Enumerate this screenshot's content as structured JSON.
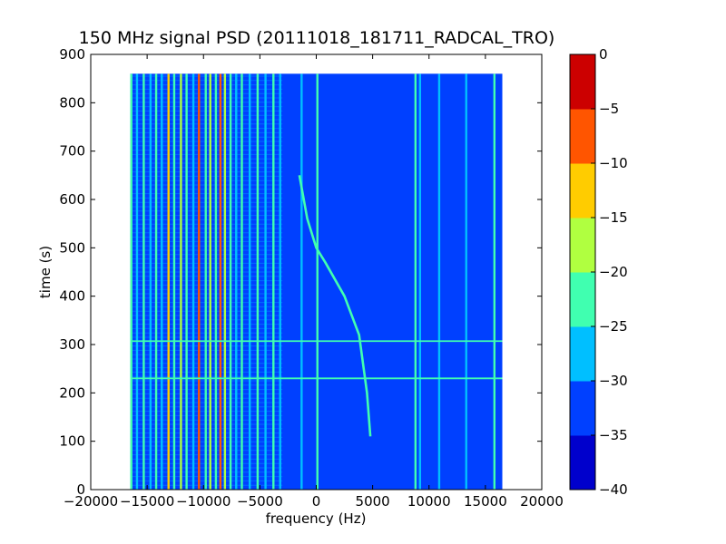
{
  "chart_data": {
    "type": "heatmap",
    "title": "150 MHz signal PSD (20111018_181711_RADCAL_TRO)",
    "xlabel": "frequency (Hz)",
    "ylabel": "time (s)",
    "xlim": [
      -20000,
      20000
    ],
    "ylim": [
      0,
      900
    ],
    "x_ticks": [
      -20000,
      -15000,
      -10000,
      -5000,
      0,
      5000,
      10000,
      15000,
      20000
    ],
    "x_tick_labels": [
      "−20000",
      "−15000",
      "−10000",
      "−5000",
      "0",
      "5000",
      "10000",
      "15000",
      "20000"
    ],
    "y_ticks": [
      0,
      100,
      200,
      300,
      400,
      500,
      600,
      700,
      800,
      900
    ],
    "y_tick_labels": [
      "0",
      "100",
      "200",
      "300",
      "400",
      "500",
      "600",
      "700",
      "800",
      "900"
    ],
    "data_extent": {
      "freq": [
        -16500,
        16500
      ],
      "time": [
        0,
        860
      ]
    },
    "background_level": -33,
    "colorbar": {
      "levels": [
        -40,
        -35,
        -30,
        -25,
        -20,
        -15,
        -10,
        -5,
        0
      ],
      "tick_labels": [
        "−40",
        "−35",
        "−30",
        "−25",
        "−20",
        "−15",
        "−10",
        "−5",
        "0"
      ],
      "colors": [
        "#0000cc",
        "#0040ff",
        "#00bfff",
        "#40ffb0",
        "#b0ff40",
        "#ffcc00",
        "#ff5500",
        "#cc0000"
      ]
    },
    "vertical_lines": [
      {
        "freq": -16400,
        "level": -22
      },
      {
        "freq": -15900,
        "level": -27
      },
      {
        "freq": -15300,
        "level": -22
      },
      {
        "freq": -14700,
        "level": -27
      },
      {
        "freq": -14200,
        "level": -22
      },
      {
        "freq": -13700,
        "level": -27
      },
      {
        "freq": -13100,
        "level": -12
      },
      {
        "freq": -12600,
        "level": -22
      },
      {
        "freq": -12000,
        "level": -17
      },
      {
        "freq": -11500,
        "level": -22
      },
      {
        "freq": -10900,
        "level": -27
      },
      {
        "freq": -10400,
        "level": -7
      },
      {
        "freq": -9800,
        "level": -22
      },
      {
        "freq": -9400,
        "level": -17
      },
      {
        "freq": -8900,
        "level": -22
      },
      {
        "freq": -8500,
        "level": -7
      },
      {
        "freq": -8100,
        "level": -17
      },
      {
        "freq": -7600,
        "level": -22
      },
      {
        "freq": -7100,
        "level": -27
      },
      {
        "freq": -6600,
        "level": -22
      },
      {
        "freq": -5900,
        "level": -27
      },
      {
        "freq": -5200,
        "level": -22
      },
      {
        "freq": -4500,
        "level": -27
      },
      {
        "freq": -3800,
        "level": -22
      },
      {
        "freq": -3200,
        "level": -27
      },
      {
        "freq": -1300,
        "level": -27
      },
      {
        "freq": 100,
        "level": -22
      },
      {
        "freq": 8800,
        "level": -22
      },
      {
        "freq": 9200,
        "level": -27
      },
      {
        "freq": 10900,
        "level": -27
      },
      {
        "freq": 13300,
        "level": -27
      },
      {
        "freq": 15800,
        "level": -22
      }
    ],
    "horizontal_lines": [
      {
        "time": 230,
        "level": -25
      },
      {
        "time": 307,
        "level": -25
      }
    ],
    "drift_trace": {
      "level": -22,
      "points": [
        [
          4800,
          110
        ],
        [
          4500,
          200
        ],
        [
          3800,
          320
        ],
        [
          2500,
          400
        ],
        [
          800,
          470
        ],
        [
          0,
          500
        ],
        [
          -800,
          560
        ],
        [
          -1500,
          650
        ]
      ]
    }
  }
}
